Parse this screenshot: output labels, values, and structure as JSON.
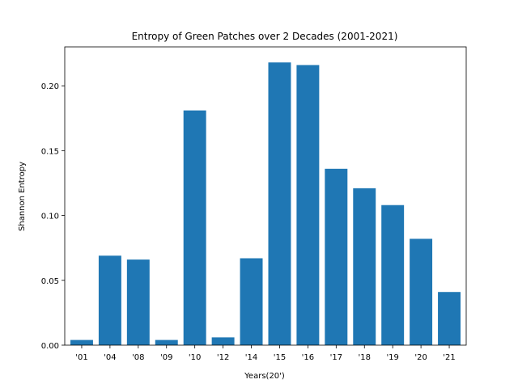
{
  "chart_data": {
    "type": "bar",
    "title": "Entropy of Green Patches over 2 Decades (2001-2021)",
    "xlabel": "Years(20')",
    "ylabel": "Shannon Entropy",
    "categories": [
      "'01",
      "'04",
      "'08",
      "'09",
      "'10",
      "'12",
      "'14",
      "'15",
      "'16",
      "'17",
      "'18",
      "'19",
      "'20",
      "'21"
    ],
    "values": [
      0.004,
      0.069,
      0.066,
      0.004,
      0.181,
      0.006,
      0.067,
      0.218,
      0.216,
      0.136,
      0.121,
      0.108,
      0.082,
      0.041
    ],
    "ylim": [
      0,
      0.23
    ],
    "yticks": [
      "0.00",
      "0.05",
      "0.10",
      "0.15",
      "0.20"
    ],
    "ytick_values": [
      0,
      0.05,
      0.1,
      0.15,
      0.2
    ],
    "bar_color": "#1f77b4",
    "grid": false,
    "legend": false
  }
}
